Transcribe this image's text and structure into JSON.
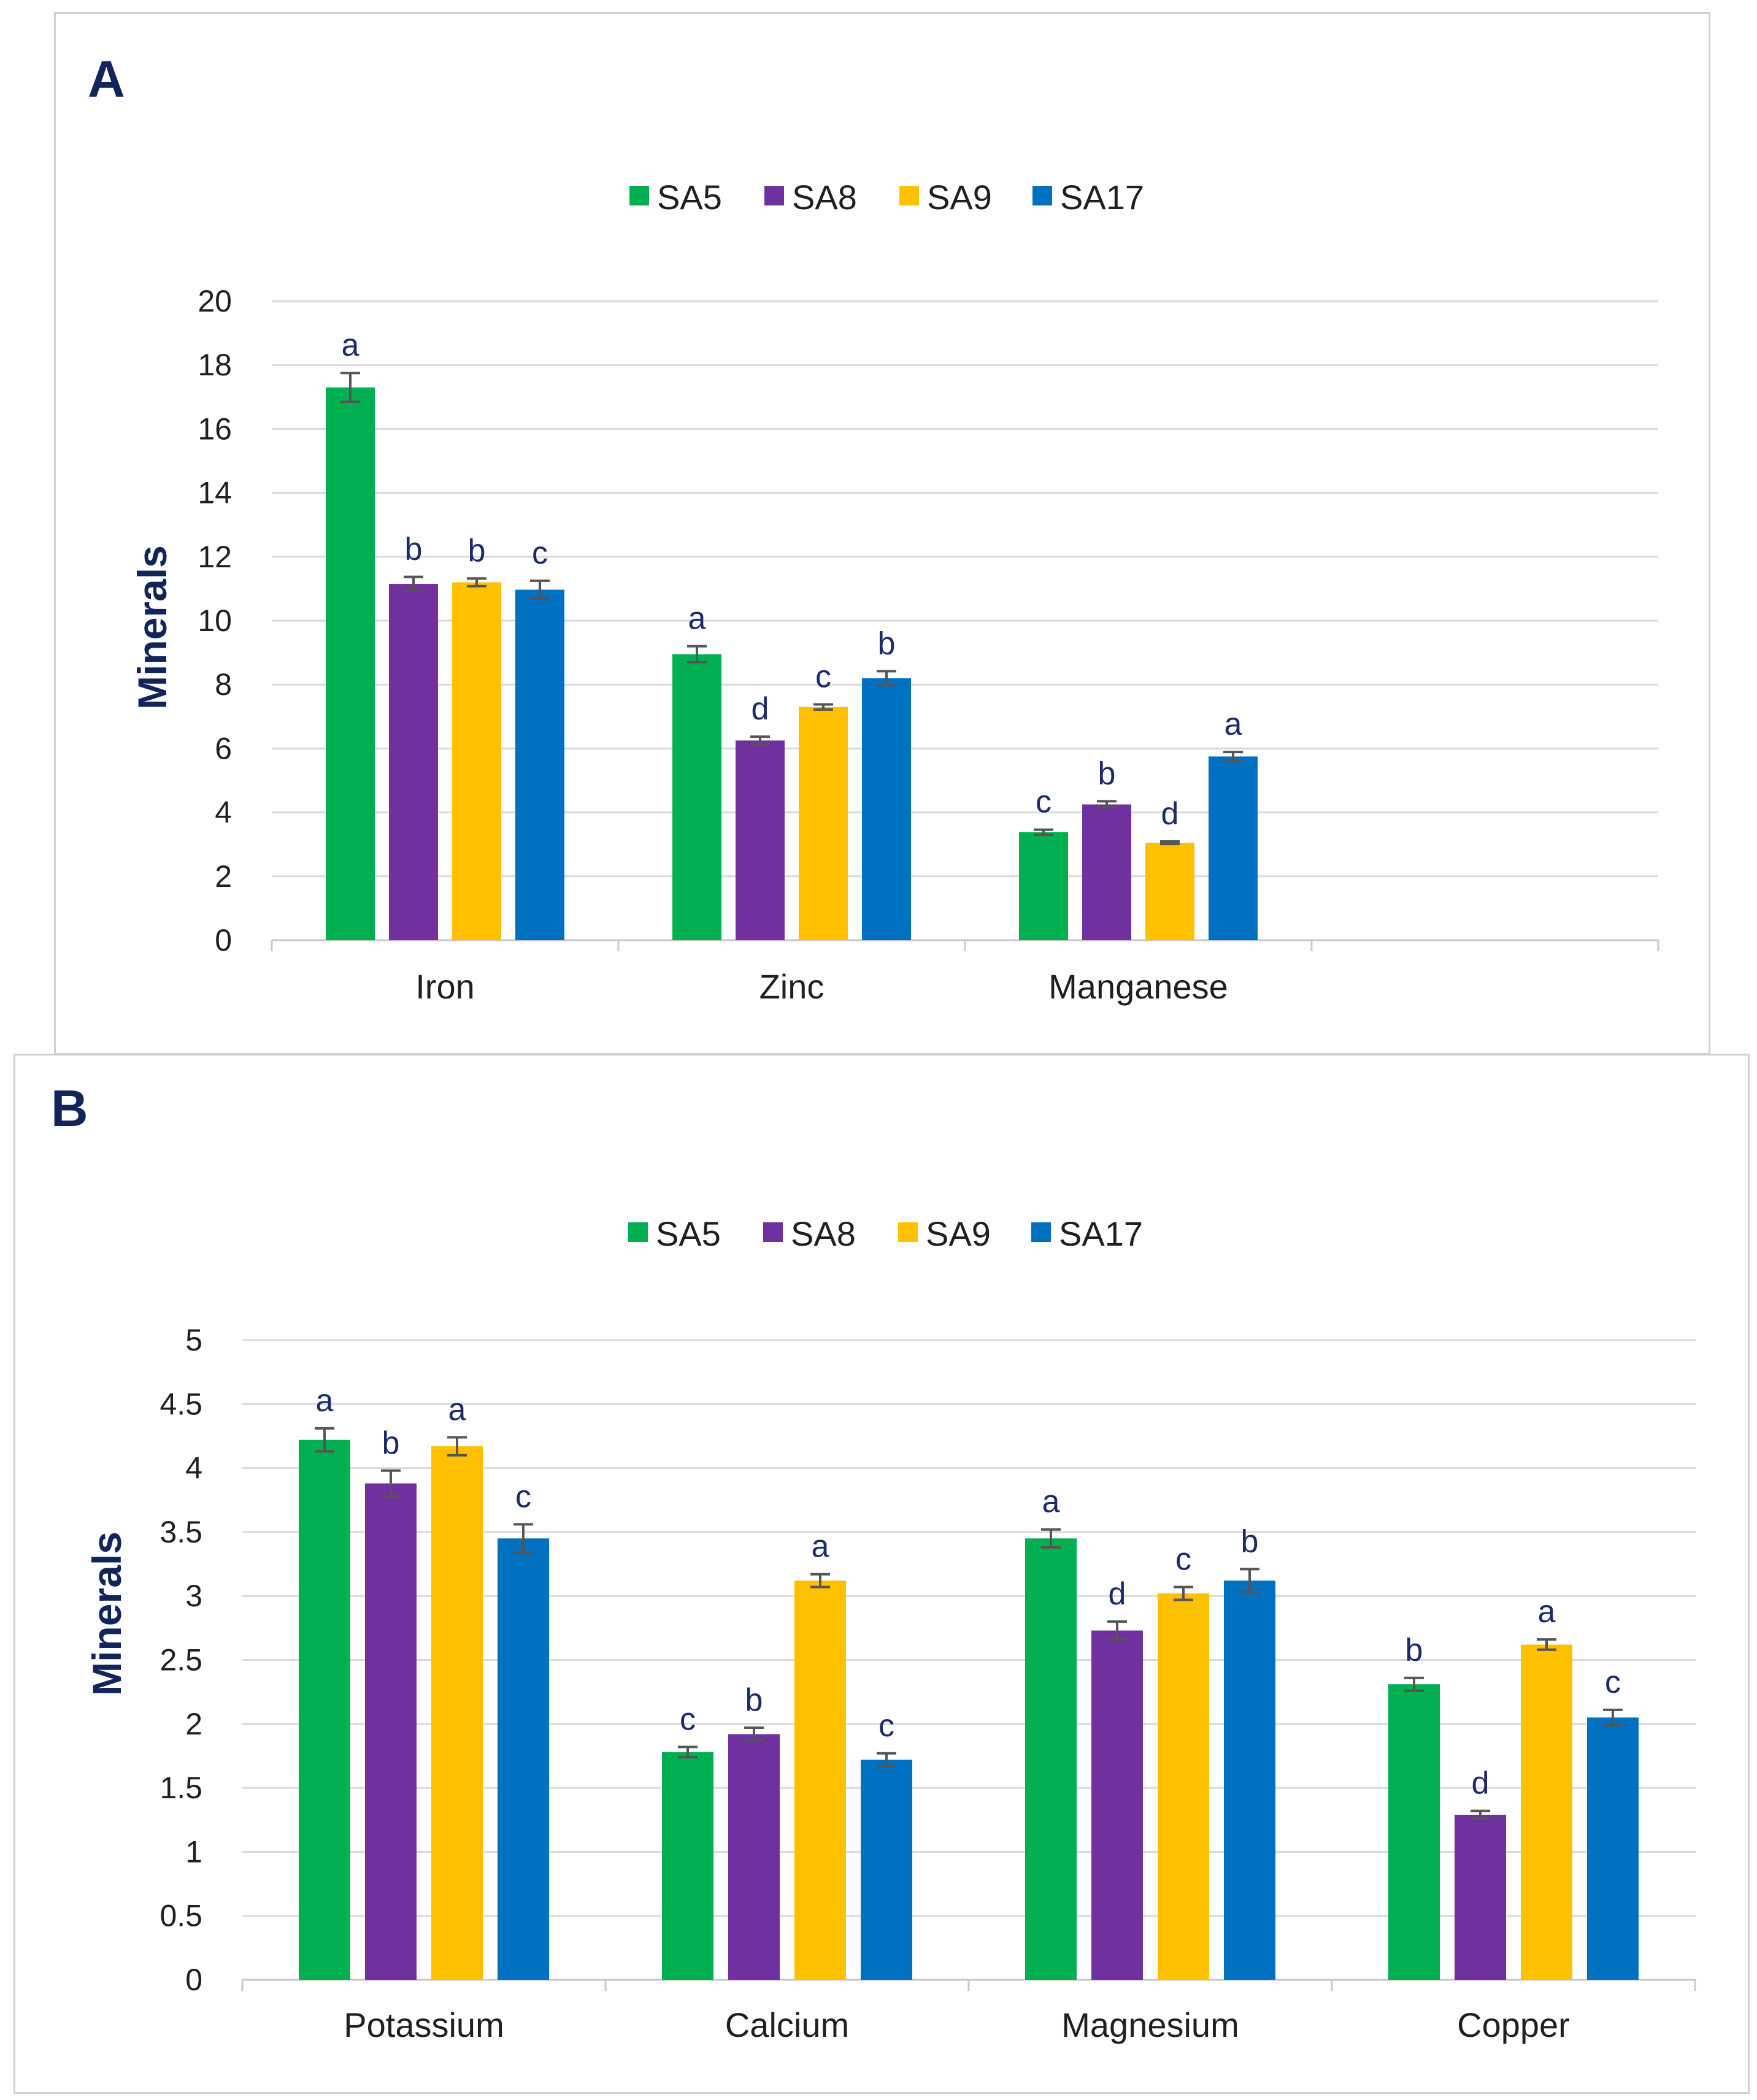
{
  "chart_data": [
    {
      "panel": "A",
      "type": "bar",
      "ylabel": "Minerals",
      "xlabel": "",
      "ylim": [
        0,
        20
      ],
      "yticks": [
        0,
        2,
        4,
        6,
        8,
        10,
        12,
        14,
        16,
        18,
        20
      ],
      "grid": true,
      "legend_position": "top-center",
      "categories": [
        "Iron",
        "Zinc",
        "Manganese"
      ],
      "series": [
        {
          "name": "SA5",
          "color": "#00b050",
          "values": [
            17.3,
            8.95,
            3.38
          ],
          "errors": [
            0.45,
            0.25,
            0.08
          ],
          "letters": [
            "a",
            "a",
            "c"
          ]
        },
        {
          "name": "SA8",
          "color": "#7030a0",
          "values": [
            11.15,
            6.25,
            4.25
          ],
          "errors": [
            0.22,
            0.12,
            0.1
          ],
          "letters": [
            "b",
            "d",
            "b"
          ]
        },
        {
          "name": "SA9",
          "color": "#ffc000",
          "values": [
            11.2,
            7.3,
            3.05
          ],
          "errors": [
            0.12,
            0.08,
            0.04
          ],
          "letters": [
            "b",
            "c",
            "d"
          ]
        },
        {
          "name": "SA17",
          "color": "#0070c0",
          "values": [
            10.97,
            8.2,
            5.75
          ],
          "errors": [
            0.28,
            0.22,
            0.14
          ],
          "letters": [
            "c",
            "b",
            "a"
          ]
        }
      ]
    },
    {
      "panel": "B",
      "type": "bar",
      "ylabel": "Minerals",
      "xlabel": "",
      "ylim": [
        0,
        5
      ],
      "yticks": [
        0,
        0.5,
        1,
        1.5,
        2,
        2.5,
        3,
        3.5,
        4,
        4.5,
        5
      ],
      "grid": true,
      "legend_position": "top-center",
      "categories": [
        "Potassium",
        "Calcium",
        "Magnesium",
        "Copper"
      ],
      "series": [
        {
          "name": "SA5",
          "color": "#00b050",
          "values": [
            4.22,
            1.78,
            3.45,
            2.31
          ],
          "errors": [
            0.09,
            0.04,
            0.07,
            0.05
          ],
          "letters": [
            "a",
            "c",
            "a",
            "b"
          ]
        },
        {
          "name": "SA8",
          "color": "#7030a0",
          "values": [
            3.88,
            1.92,
            2.73,
            1.29
          ],
          "errors": [
            0.1,
            0.05,
            0.07,
            0.03
          ],
          "letters": [
            "b",
            "b",
            "d",
            "d"
          ]
        },
        {
          "name": "SA9",
          "color": "#ffc000",
          "values": [
            4.17,
            3.12,
            3.02,
            2.62
          ],
          "errors": [
            0.07,
            0.05,
            0.05,
            0.04
          ],
          "letters": [
            "a",
            "a",
            "c",
            "a"
          ]
        },
        {
          "name": "SA17",
          "color": "#0070c0",
          "values": [
            3.45,
            1.72,
            3.12,
            2.05
          ],
          "errors": [
            0.11,
            0.05,
            0.09,
            0.06
          ],
          "letters": [
            "c",
            "c",
            "b",
            "c"
          ]
        }
      ]
    }
  ]
}
